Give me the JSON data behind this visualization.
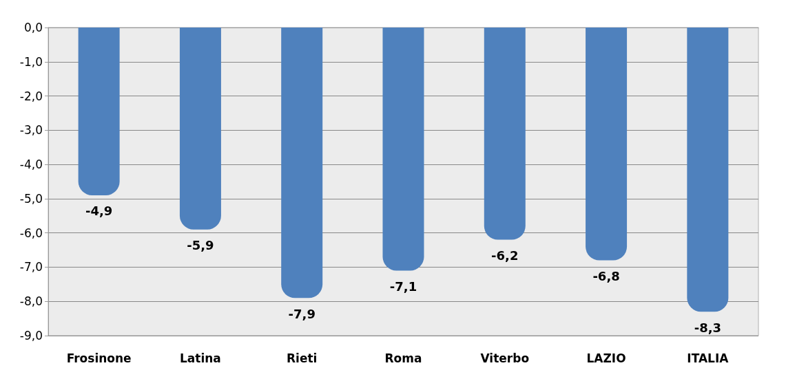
{
  "chart_data": {
    "type": "bar",
    "categories": [
      "Frosinone",
      "Latina",
      "Rieti",
      "Roma",
      "Viterbo",
      "LAZIO",
      "ITALIA"
    ],
    "values": [
      -4.9,
      -5.9,
      -7.9,
      -7.1,
      -6.2,
      -6.8,
      -8.3
    ],
    "value_labels": [
      "-4,9",
      "-5,9",
      "-7,9",
      "-7,1",
      "-6,2",
      "-6,8",
      "-8,3"
    ],
    "color": "#4f81bd",
    "ylim": [
      -9,
      0
    ],
    "yticks": [
      {
        "value": 0,
        "label": "0,0"
      },
      {
        "value": -1,
        "label": "-1,0"
      },
      {
        "value": -2,
        "label": "-2,0"
      },
      {
        "value": -3,
        "label": "-3,0"
      },
      {
        "value": -4,
        "label": "-4,0"
      },
      {
        "value": -5,
        "label": "-5,0"
      },
      {
        "value": -6,
        "label": "-6,0"
      },
      {
        "value": -7,
        "label": "-7,0"
      },
      {
        "value": -8,
        "label": "-8,0"
      },
      {
        "value": -9,
        "label": "-9,0"
      }
    ],
    "grid": "y"
  }
}
